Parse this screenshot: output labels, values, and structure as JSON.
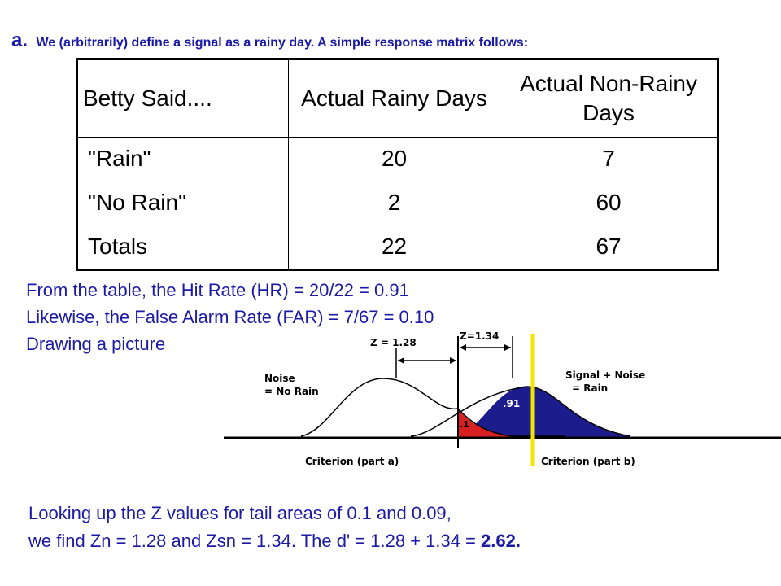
{
  "heading": {
    "letter": "a.",
    "intro": "We (arbitrarily) define a signal as a rainy day. A simple response matrix follows:"
  },
  "table": {
    "headers": [
      "Betty Said....",
      "Actual Rainy Days",
      "Actual Non-Rainy Days"
    ],
    "rows": [
      {
        "label": "\"Rain\"",
        "rainy": "20",
        "nonrainy": "7"
      },
      {
        "label": "\"No Rain\"",
        "rainy": "2",
        "nonrainy": "60"
      },
      {
        "label": "Totals",
        "rainy": "22",
        "nonrainy": "67"
      }
    ]
  },
  "lines": [
    "From the table, the Hit Rate (HR) = 20/22 = 0.91",
    "Likewise, the False Alarm Rate (FAR) = 7/67 = 0.10",
    "Drawing a picture"
  ],
  "figure": {
    "z_left": "Z = 1.28",
    "z_right": "Z=1.34",
    "noise_label_1": "Noise",
    "noise_label_2": "= No Rain",
    "signal_label_1": "Signal + Noise",
    "signal_label_2": "= Rain",
    "area_big": ".91",
    "area_small": ".1",
    "criterion_a": "Criterion (part a)",
    "criterion_b": "Criterion (part b)",
    "colors": {
      "signal": "#1c1c8c",
      "noise_tail": "#d92020",
      "criterion_line": "#f2e600"
    }
  },
  "bottom": {
    "line1": "Looking up the Z values for tail areas of 0.1 and 0.09,",
    "line2": "we find Zn = 1.28 and Zsn = 1.34. The d' = 1.28 + 1.34 = ",
    "line2_result": "2.62."
  }
}
